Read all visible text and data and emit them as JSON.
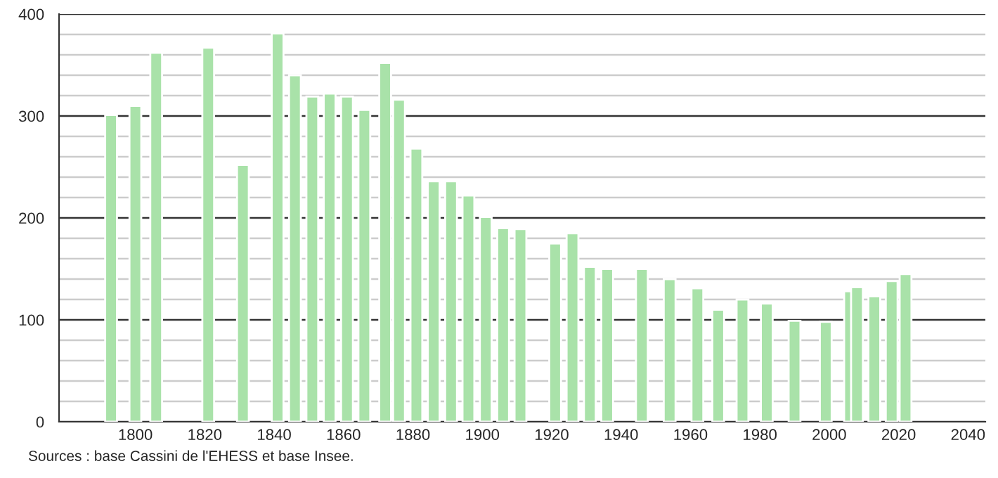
{
  "chart_data": {
    "type": "bar",
    "x": [
      1793,
      1800,
      1806,
      1821,
      1831,
      1841,
      1846,
      1851,
      1856,
      1861,
      1866,
      1872,
      1876,
      1881,
      1886,
      1891,
      1896,
      1901,
      1906,
      1911,
      1921,
      1926,
      1931,
      1936,
      1946,
      1954,
      1962,
      1968,
      1975,
      1982,
      1990,
      1999,
      2006,
      2008,
      2013,
      2018,
      2022
    ],
    "values": [
      301,
      310,
      362,
      367,
      252,
      381,
      340,
      319,
      322,
      319,
      306,
      352,
      316,
      268,
      236,
      236,
      222,
      201,
      190,
      189,
      175,
      185,
      152,
      150,
      150,
      140,
      131,
      110,
      120,
      116,
      99,
      98,
      128,
      132,
      123,
      138,
      145
    ],
    "color": "#a9e2a9",
    "xlim": [
      1778,
      2045
    ],
    "xticks": [
      1800,
      1820,
      1840,
      1860,
      1880,
      1900,
      1920,
      1940,
      1960,
      1980,
      2000,
      2020,
      2040
    ],
    "ylim": [
      0,
      400
    ],
    "yticks": [
      0,
      {
        "value": 20,
        "label": null
      },
      {
        "value": 40,
        "label": null
      },
      {
        "value": 60,
        "label": null
      },
      {
        "value": 80,
        "label": null
      },
      100,
      {
        "value": 120,
        "label": null
      },
      {
        "value": 140,
        "label": null
      },
      {
        "value": 160,
        "label": null
      },
      {
        "value": 180,
        "label": null
      },
      200,
      {
        "value": 220,
        "label": null
      },
      {
        "value": 240,
        "label": null
      },
      {
        "value": 260,
        "label": null
      },
      {
        "value": 280,
        "label": null
      },
      300,
      {
        "value": 320,
        "label": null
      },
      {
        "value": 340,
        "label": null
      },
      {
        "value": 360,
        "label": null
      },
      {
        "value": 380,
        "label": null
      },
      400
    ],
    "grid": "y",
    "annotations": [
      "Sources : base Cassini de l'EHESS et base Insee."
    ]
  }
}
